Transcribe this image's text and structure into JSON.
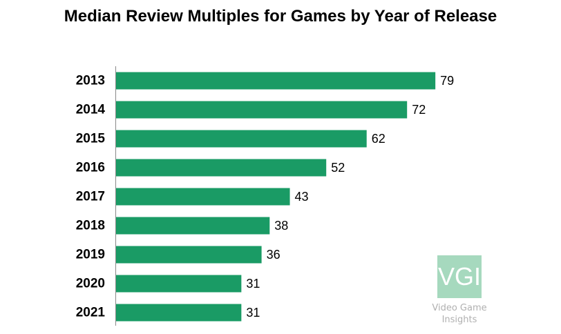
{
  "chart_data": {
    "type": "bar",
    "orientation": "horizontal",
    "title": "Median Review Multiples for Games by Year of Release",
    "categories": [
      "2013",
      "2014",
      "2015",
      "2016",
      "2017",
      "2018",
      "2019",
      "2020",
      "2021"
    ],
    "values": [
      79,
      72,
      62,
      52,
      43,
      38,
      36,
      31,
      31
    ],
    "xlim": [
      0,
      79
    ],
    "xlabel": "",
    "ylabel": "",
    "grid": false,
    "legend": "none",
    "data_labels": true,
    "bar_color": "#1a9b65"
  },
  "logo": {
    "mark": "VGI",
    "line1": "Video Game",
    "line2": "Insights",
    "color": "#a6d9be"
  }
}
